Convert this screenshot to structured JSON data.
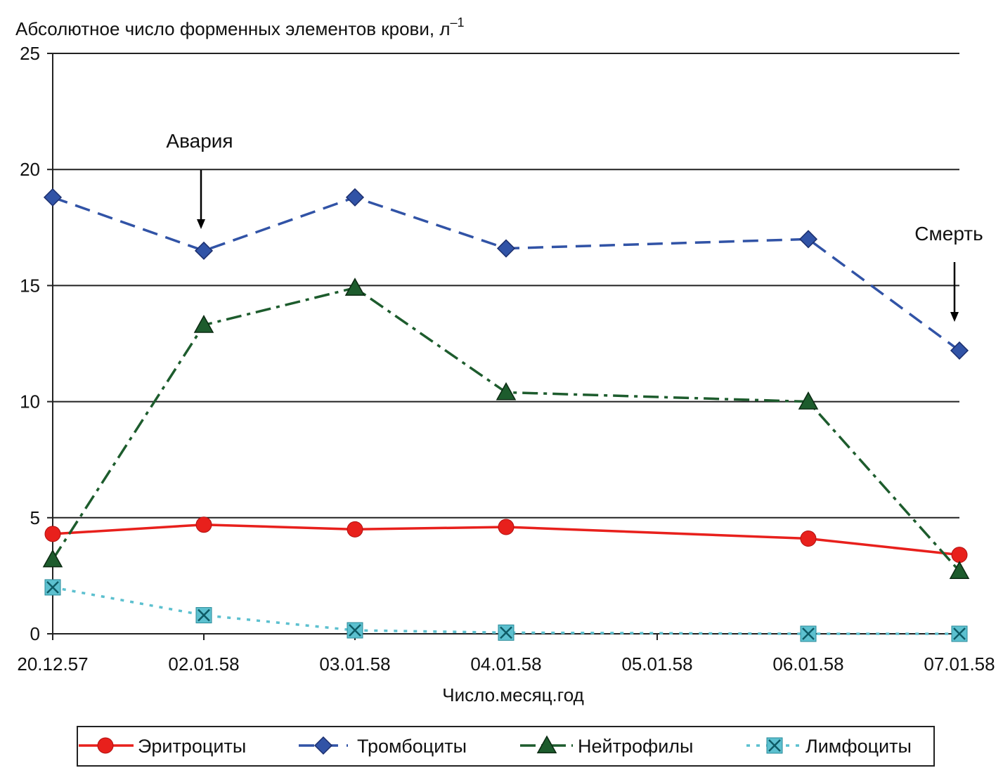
{
  "chart_data": {
    "type": "line",
    "ylabel": "Абсолютное число форменных элементов крови, л",
    "ylabel_superscript": "–1",
    "xlabel": "Число.месяц.год",
    "categories": [
      "20.12.57",
      "02.01.58",
      "03.01.58",
      "04.01.58",
      "05.01.58",
      "06.01.58",
      "07.01.58"
    ],
    "ylim": [
      0,
      25
    ],
    "yticks": [
      "0",
      "5",
      "10",
      "15",
      "20",
      "25"
    ],
    "grid": true,
    "legend_position": "bottom",
    "series": [
      {
        "name": "Эритроциты",
        "color": "#e8201c",
        "marker": "circle",
        "dash": "solid",
        "x": [
          "20.12.57",
          "02.01.58",
          "03.01.58",
          "04.01.58",
          "06.01.58",
          "07.01.58"
        ],
        "values": [
          4.3,
          4.7,
          4.5,
          4.6,
          4.1,
          3.4
        ]
      },
      {
        "name": "Тромбоциты",
        "color": "#3153a6",
        "marker": "diamond",
        "dash": "dashed",
        "x": [
          "20.12.57",
          "02.01.58",
          "03.01.58",
          "04.01.58",
          "06.01.58",
          "07.01.58"
        ],
        "values": [
          18.8,
          16.5,
          18.8,
          16.6,
          17.0,
          12.2
        ]
      },
      {
        "name": "Нейтрофилы",
        "color": "#1d5c2d",
        "marker": "triangle",
        "dash": "dashdot",
        "x": [
          "20.12.57",
          "02.01.58",
          "03.01.58",
          "04.01.58",
          "06.01.58",
          "07.01.58"
        ],
        "values": [
          3.2,
          13.3,
          14.9,
          10.4,
          10.0,
          2.7
        ]
      },
      {
        "name": "Лимфоциты",
        "color": "#5cc0cf",
        "marker": "xbox",
        "dash": "dotted",
        "x": [
          "20.12.57",
          "02.01.58",
          "03.01.58",
          "04.01.58",
          "06.01.58",
          "07.01.58"
        ],
        "values": [
          2.0,
          0.8,
          0.15,
          0.05,
          0.0,
          0.0
        ]
      }
    ],
    "annotations": [
      {
        "text": "Авария",
        "x": "02.01.58",
        "y": 16.5
      },
      {
        "text": "Смерть",
        "x": "07.01.58",
        "y": 12.2
      }
    ]
  }
}
